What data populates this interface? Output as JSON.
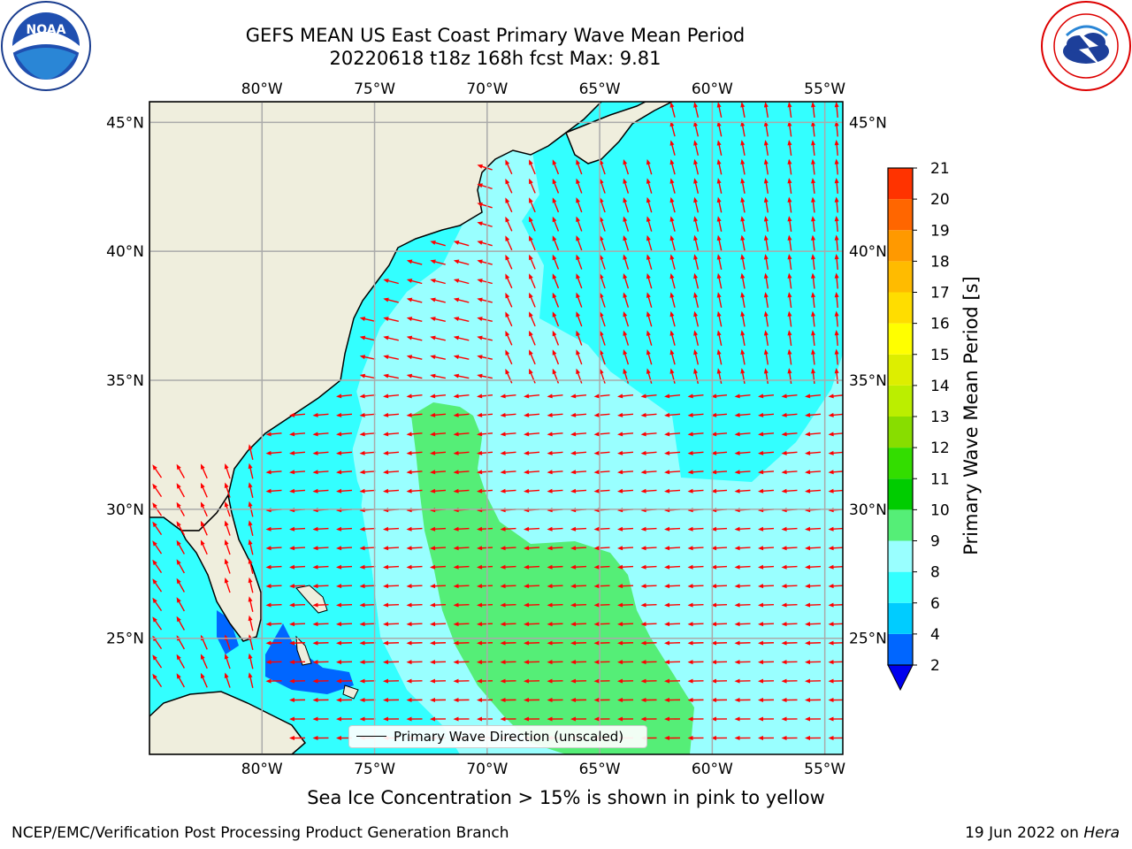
{
  "header": {
    "title_line1": "GEFS MEAN US East Coast Primary Wave Mean Period",
    "title_line2": "20220618 t18z 168h fcst   Max: 9.81"
  },
  "logos": {
    "left": {
      "icon": "noaa-logo",
      "text": "NOAA",
      "ring_text": "NATIONAL OCEANIC AND ATMOSPHERIC ADMINISTRATION · U.S. DEPARTMENT OF COMMERCE"
    },
    "right": {
      "icon": "nws-logo",
      "ring_text": "NATIONAL WEATHER SERVICE"
    }
  },
  "map": {
    "lon_labels": [
      "80°W",
      "75°W",
      "70°W",
      "65°W",
      "60°W",
      "55°W"
    ],
    "lat_labels": [
      "45°N",
      "40°N",
      "35°N",
      "30°N",
      "25°N"
    ],
    "lon_values": [
      -80,
      -75,
      -70,
      -65,
      -60,
      -55
    ],
    "lat_values": [
      45,
      40,
      35,
      30,
      25
    ],
    "extent": {
      "lon_min": -85,
      "lon_max": -54.2,
      "lat_min": 20.5,
      "lat_max": 45.8
    },
    "arrow_color": "#ff0000",
    "land_color": "#efeedd",
    "legend_label": "Primary Wave Direction (unscaled)"
  },
  "colorbar": {
    "label": "Primary Wave Mean Period [s]",
    "ticks": [
      "2",
      "4",
      "6",
      "8",
      "9",
      "10",
      "11",
      "12",
      "13",
      "14",
      "15",
      "16",
      "17",
      "18",
      "19",
      "20",
      "21"
    ],
    "colors": [
      "#0066ff",
      "#00ccff",
      "#33ffff",
      "#99ffff",
      "#55ee77",
      "#00cc00",
      "#33dd00",
      "#88dd00",
      "#bbee00",
      "#ddee00",
      "#ffff00",
      "#ffdd00",
      "#ffbb00",
      "#ff9900",
      "#ff6600",
      "#ff3300",
      "#ff0000"
    ],
    "under_color": "#0000ee",
    "extend": "min"
  },
  "footer": {
    "caption": "Sea Ice Concentration > 15% is shown in pink to yellow",
    "credit_left": "NCEP/EMC/Verification Post Processing Product Generation Branch",
    "date": "19 Jun 2022 on",
    "machine": "Hera"
  }
}
